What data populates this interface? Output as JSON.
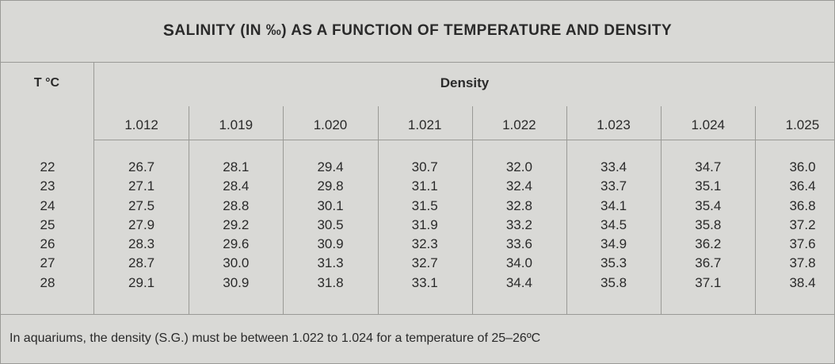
{
  "title_prefix": "S",
  "title_rest": "ALINITY (IN ‰) AS A FUNCTION OF TEMPERATURE AND DENSITY",
  "header_temp": "T °C",
  "header_density": "Density",
  "densities": [
    "1.012",
    "1.019",
    "1.020",
    "1.021",
    "1.022",
    "1.023",
    "1.024",
    "1.025"
  ],
  "temperatures": [
    "22",
    "23",
    "24",
    "25",
    "26",
    "27",
    "28"
  ],
  "columns": [
    [
      "26.7",
      "27.1",
      "27.5",
      "27.9",
      "28.3",
      "28.7",
      "29.1"
    ],
    [
      "28.1",
      "28.4",
      "28.8",
      "29.2",
      "29.6",
      "30.0",
      "30.9"
    ],
    [
      "29.4",
      "29.8",
      "30.1",
      "30.5",
      "30.9",
      "31.3",
      "31.8"
    ],
    [
      "30.7",
      "31.1",
      "31.5",
      "31.9",
      "32.3",
      "32.7",
      "33.1"
    ],
    [
      "32.0",
      "32.4",
      "32.8",
      "33.2",
      "33.6",
      "34.0",
      "34.4"
    ],
    [
      "33.4",
      "33.7",
      "34.1",
      "34.5",
      "34.9",
      "35.3",
      "35.8"
    ],
    [
      "34.7",
      "35.1",
      "35.4",
      "35.8",
      "36.2",
      "36.7",
      "37.1"
    ],
    [
      "36.0",
      "36.4",
      "36.8",
      "37.2",
      "37.6",
      "37.8",
      "38.4"
    ]
  ],
  "note": "In aquariums, the density (S.G.) must be between 1.022 to 1.024 for a temperature of 25–26ºC"
}
